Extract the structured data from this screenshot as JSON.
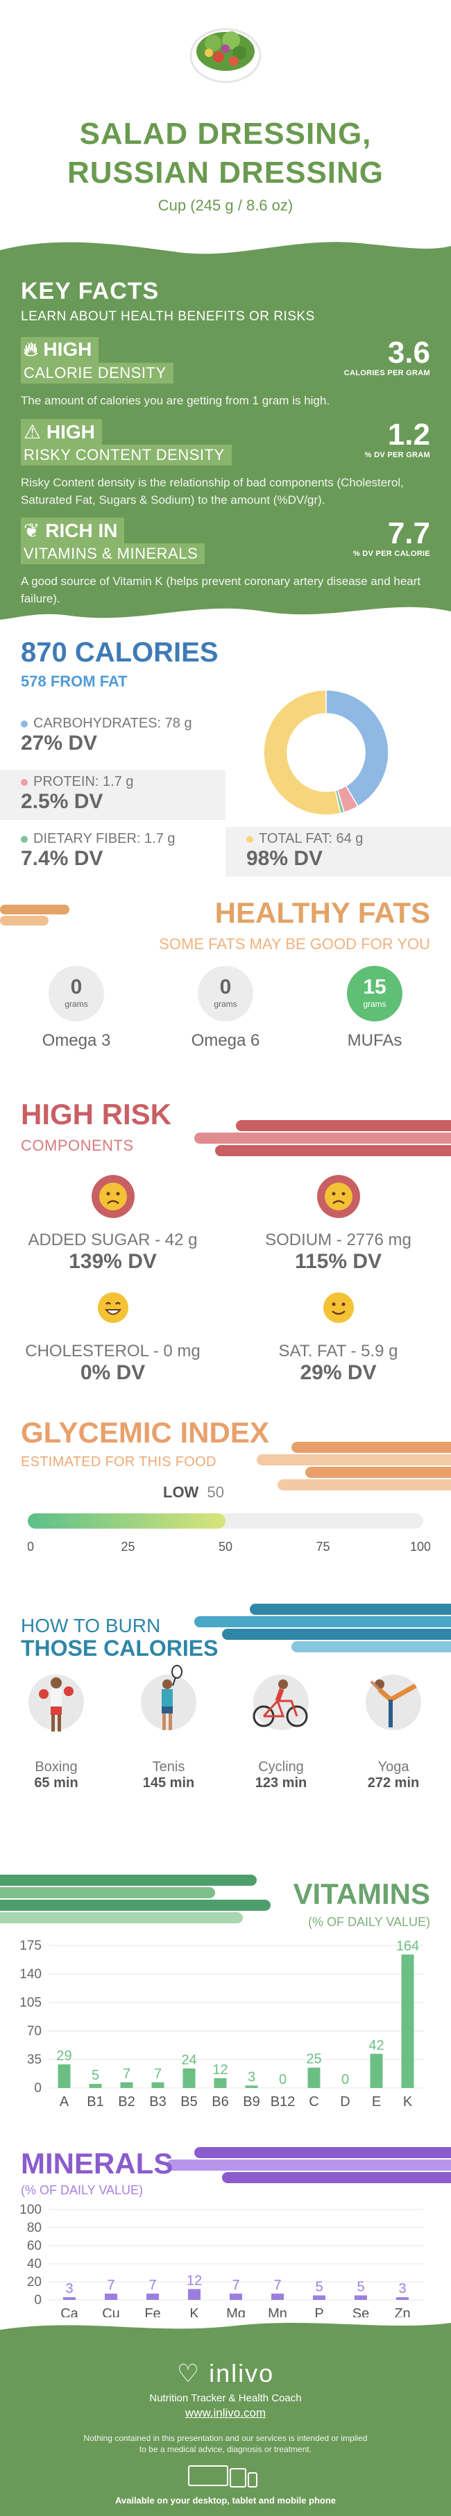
{
  "header": {
    "title_line1": "SALAD DRESSING,",
    "title_line2": "RUSSIAN DRESSING",
    "serving": "Cup (245 g / 8.6 oz)"
  },
  "key_facts": {
    "title": "KEY FACTS",
    "subtitle": "LEARN ABOUT HEALTH BENEFITS OR RISKS",
    "items": [
      {
        "level": "HIGH",
        "name": "CALORIE DENSITY",
        "value": "3.6",
        "unit": "CALORIES PER GRAM",
        "desc": "The amount of calories you are getting from 1 gram is high.",
        "icon": "flame-icon"
      },
      {
        "level": "HIGH",
        "name": "RISKY CONTENT DENSITY",
        "value": "1.2",
        "unit": "% DV PER GRAM",
        "desc": "Risky Content density is the relationship of bad components (Cholesterol, Saturated Fat, Sugars & Sodium) to the amount (%DV/gr).",
        "icon": "warning-icon"
      },
      {
        "level": "RICH  IN",
        "name": "VITAMINS & MINERALS",
        "value": "7.7",
        "unit": "% DV PER CALORIE",
        "desc": "A good source of Vitamin K (helps prevent coronary artery disease and heart failure).",
        "icon": "leaf-icon"
      }
    ]
  },
  "calories": {
    "title": "870 CALORIES",
    "subtitle": "578 FROM FAT",
    "nutrients": [
      {
        "label": "CARBOHYDRATES: 78 g",
        "dv": "27% DV",
        "color": "#8fb9e3"
      },
      {
        "label": "PROTEIN: 1.7 g",
        "dv": "2.5% DV",
        "color": "#ee9fa3"
      },
      {
        "label": "DIETARY FIBER: 1.7 g",
        "dv": "7.4% DV",
        "color": "#7ec39c"
      },
      {
        "label": "TOTAL FAT: 64 g",
        "dv": "98% DV",
        "color": "#f7d57d"
      }
    ],
    "donut": [
      {
        "name": "carbohydrates",
        "value": 27,
        "color": "#8fb9e3"
      },
      {
        "name": "protein",
        "value": 2.5,
        "color": "#ee9fa3"
      },
      {
        "name": "fiber",
        "value": 0.6,
        "color": "#7ec39c"
      },
      {
        "name": "fat",
        "value": 35,
        "color": "#f7d57d"
      }
    ]
  },
  "fats": {
    "title": "HEALTHY FATS",
    "subtitle": "SOME FATS MAY BE GOOD FOR YOU",
    "items": [
      {
        "value": "0",
        "unit": "grams",
        "label": "Omega 3"
      },
      {
        "value": "0",
        "unit": "grams",
        "label": "Omega 6"
      },
      {
        "value": "15",
        "unit": "grams",
        "label": "MUFAs"
      }
    ]
  },
  "risk": {
    "title": "HIGH RISK",
    "subtitle": "COMPONENTS",
    "items": [
      {
        "label": "ADDED SUGAR - 42 g",
        "dv": "139% DV",
        "face": "sad"
      },
      {
        "label": "SODIUM - 2776 mg",
        "dv": "115% DV",
        "face": "sad"
      },
      {
        "label": "CHOLESTEROL - 0 mg",
        "dv": "0% DV",
        "face": "happy"
      },
      {
        "label": "SAT. FAT - 5.9 g",
        "dv": "29% DV",
        "face": "smile"
      }
    ]
  },
  "glycemic": {
    "title": "GLYCEMIC INDEX",
    "subtitle": "ESTIMATED FOR THIS FOOD",
    "level": "LOW",
    "value_label": "50",
    "value": 50,
    "ticks": [
      "0",
      "25",
      "50",
      "75",
      "100"
    ]
  },
  "burn": {
    "title1": "HOW TO BURN",
    "title2": "THOSE CALORIES",
    "activities": [
      {
        "name": "Boxing",
        "time": "65 min"
      },
      {
        "name": "Tenis",
        "time": "145 min"
      },
      {
        "name": "Cycling",
        "time": "123 min"
      },
      {
        "name": "Yoga",
        "time": "272 min"
      }
    ]
  },
  "vitamins": {
    "title": "VITAMINS",
    "subtitle": "(% OF DAILY VALUE)",
    "chart_data": {
      "type": "bar",
      "categories": [
        "A",
        "B1",
        "B2",
        "B3",
        "B5",
        "B6",
        "B9",
        "B12",
        "C",
        "D",
        "E",
        "K"
      ],
      "values": [
        29,
        5,
        7,
        7,
        24,
        12,
        3,
        0,
        25,
        0,
        42,
        164
      ],
      "yticks": [
        "0",
        "35",
        "70",
        "105",
        "140",
        "175"
      ],
      "ylim": [
        0,
        175
      ],
      "color": "#6cbf84"
    }
  },
  "minerals": {
    "title": "MINERALS",
    "subtitle": "(% OF DAILY VALUE)",
    "chart_data": {
      "type": "bar",
      "categories": [
        "Ca",
        "Cu",
        "Fe",
        "K",
        "Mg",
        "Mn",
        "P",
        "Se",
        "Zn"
      ],
      "values": [
        3,
        7,
        7,
        12,
        7,
        7,
        5,
        5,
        3
      ],
      "yticks": [
        "0",
        "20",
        "40",
        "60",
        "80",
        "100"
      ],
      "ylim": [
        0,
        100
      ],
      "color": "#9b7fe0"
    }
  },
  "footer": {
    "brand": "inlivo",
    "tagline": "Nutrition Tracker & Health Coach",
    "url": "www.inlivo.com",
    "disclaimer_line1": "Nothing contained in this presentation and our services is intended or implied",
    "disclaimer_line2": "to be a medical advice, diagnosis or treatment.",
    "available": "Available on your desktop, tablet and mobile phone"
  }
}
